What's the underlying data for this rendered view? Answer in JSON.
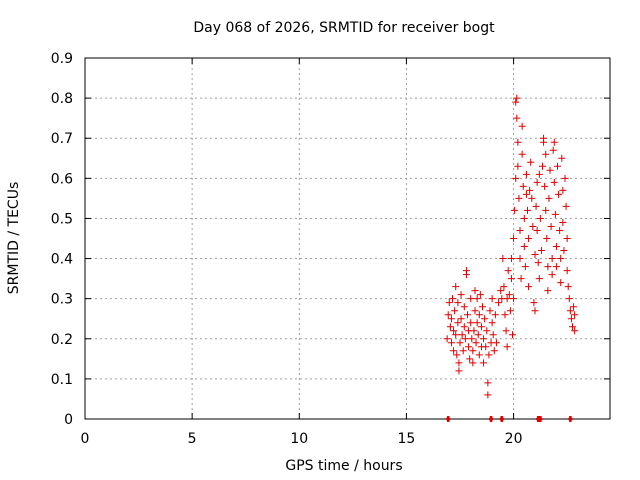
{
  "chart_data": {
    "type": "scatter",
    "title": "Day 068 of 2026, SRMTID for receiver bogt",
    "xlabel": "GPS time / hours",
    "ylabel": "SRMTID / TECUs",
    "xlim": [
      0,
      24.5
    ],
    "ylim": [
      0,
      0.9
    ],
    "x_ticks": [
      0,
      5,
      10,
      15,
      20
    ],
    "y_ticks": [
      0,
      0.1,
      0.2,
      0.3,
      0.4,
      0.5,
      0.6,
      0.7,
      0.8,
      0.9
    ],
    "x_tick_labels": [
      "0",
      "5",
      "10",
      "15",
      "20"
    ],
    "y_tick_labels": [
      "0",
      "0.1",
      "0.2",
      "0.3",
      "0.4",
      "0.5",
      "0.6",
      "0.7",
      "0.8",
      "0.9"
    ],
    "grid": true,
    "marker": "+",
    "marker_color": "#e00000",
    "series": [
      {
        "name": "SRMTID",
        "color": "#e00000",
        "points": [
          [
            16.9,
            0.2
          ],
          [
            16.95,
            0.26
          ],
          [
            17.0,
            0.29
          ],
          [
            17.05,
            0.23
          ],
          [
            17.1,
            0.19
          ],
          [
            17.1,
            0.25
          ],
          [
            17.15,
            0.3
          ],
          [
            17.2,
            0.22
          ],
          [
            17.2,
            0.17
          ],
          [
            17.25,
            0.27
          ],
          [
            17.3,
            0.33
          ],
          [
            17.3,
            0.21
          ],
          [
            17.35,
            0.16
          ],
          [
            17.4,
            0.24
          ],
          [
            17.4,
            0.29
          ],
          [
            17.45,
            0.14
          ],
          [
            17.45,
            0.12
          ],
          [
            17.5,
            0.19
          ],
          [
            17.55,
            0.25
          ],
          [
            17.55,
            0.31
          ],
          [
            17.6,
            0.21
          ],
          [
            17.65,
            0.17
          ],
          [
            17.7,
            0.23
          ],
          [
            17.7,
            0.28
          ],
          [
            17.75,
            0.2
          ],
          [
            17.8,
            0.36
          ],
          [
            17.8,
            0.37
          ],
          [
            17.85,
            0.26
          ],
          [
            17.9,
            0.22
          ],
          [
            17.9,
            0.18
          ],
          [
            17.95,
            0.15
          ],
          [
            18.0,
            0.24
          ],
          [
            18.0,
            0.3
          ],
          [
            18.05,
            0.2
          ],
          [
            18.1,
            0.17
          ],
          [
            18.1,
            0.14
          ],
          [
            18.15,
            0.22
          ],
          [
            18.2,
            0.27
          ],
          [
            18.2,
            0.32
          ],
          [
            18.25,
            0.19
          ],
          [
            18.3,
            0.24
          ],
          [
            18.3,
            0.3
          ],
          [
            18.35,
            0.21
          ],
          [
            18.4,
            0.16
          ],
          [
            18.4,
            0.26
          ],
          [
            18.45,
            0.31
          ],
          [
            18.5,
            0.23
          ],
          [
            18.5,
            0.18
          ],
          [
            18.55,
            0.28
          ],
          [
            18.6,
            0.2
          ],
          [
            18.6,
            0.14
          ],
          [
            18.65,
            0.25
          ],
          [
            18.7,
            0.18
          ],
          [
            18.75,
            0.22
          ],
          [
            18.8,
            0.09
          ],
          [
            18.8,
            0.06
          ],
          [
            18.85,
            0.16
          ],
          [
            18.9,
            0.27
          ],
          [
            18.95,
            0.19
          ],
          [
            19.0,
            0.24
          ],
          [
            19.0,
            0.3
          ],
          [
            19.05,
            0.21
          ],
          [
            19.1,
            0.17
          ],
          [
            19.15,
            0.26
          ],
          [
            19.2,
            0.19
          ],
          [
            19.3,
            0.29
          ],
          [
            19.4,
            0.32
          ],
          [
            19.45,
            0.3
          ],
          [
            19.5,
            0.4
          ],
          [
            19.55,
            0.33
          ],
          [
            19.6,
            0.26
          ],
          [
            19.65,
            0.22
          ],
          [
            19.7,
            0.3
          ],
          [
            19.7,
            0.18
          ],
          [
            19.75,
            0.37
          ],
          [
            19.8,
            0.31
          ],
          [
            19.85,
            0.27
          ],
          [
            19.9,
            0.35
          ],
          [
            19.9,
            0.4
          ],
          [
            19.95,
            0.21
          ],
          [
            20.0,
            0.3
          ],
          [
            20.0,
            0.45
          ],
          [
            20.05,
            0.52
          ],
          [
            20.1,
            0.6
          ],
          [
            20.1,
            0.79
          ],
          [
            20.15,
            0.8
          ],
          [
            20.15,
            0.75
          ],
          [
            20.2,
            0.69
          ],
          [
            20.2,
            0.63
          ],
          [
            20.25,
            0.55
          ],
          [
            20.3,
            0.47
          ],
          [
            20.3,
            0.4
          ],
          [
            20.35,
            0.35
          ],
          [
            20.4,
            0.73
          ],
          [
            20.4,
            0.66
          ],
          [
            20.45,
            0.58
          ],
          [
            20.5,
            0.5
          ],
          [
            20.5,
            0.43
          ],
          [
            20.55,
            0.38
          ],
          [
            20.6,
            0.56
          ],
          [
            20.6,
            0.61
          ],
          [
            20.65,
            0.52
          ],
          [
            20.7,
            0.45
          ],
          [
            20.7,
            0.33
          ],
          [
            20.75,
            0.57
          ],
          [
            20.8,
            0.64
          ],
          [
            20.85,
            0.55
          ],
          [
            20.9,
            0.48
          ],
          [
            20.95,
            0.29
          ],
          [
            21.0,
            0.27
          ],
          [
            21.0,
            0.41
          ],
          [
            21.05,
            0.53
          ],
          [
            21.1,
            0.59
          ],
          [
            21.1,
            0.47
          ],
          [
            21.15,
            0.39
          ],
          [
            21.2,
            0.35
          ],
          [
            21.2,
            0.61
          ],
          [
            21.25,
            0.5
          ],
          [
            21.3,
            0.42
          ],
          [
            21.35,
            0.63
          ],
          [
            21.4,
            0.69
          ],
          [
            21.4,
            0.7
          ],
          [
            21.45,
            0.58
          ],
          [
            21.5,
            0.66
          ],
          [
            21.5,
            0.52
          ],
          [
            21.55,
            0.45
          ],
          [
            21.6,
            0.38
          ],
          [
            21.6,
            0.32
          ],
          [
            21.65,
            0.55
          ],
          [
            21.7,
            0.62
          ],
          [
            21.75,
            0.48
          ],
          [
            21.8,
            0.4
          ],
          [
            21.8,
            0.36
          ],
          [
            21.85,
            0.67
          ],
          [
            21.9,
            0.69
          ],
          [
            21.9,
            0.59
          ],
          [
            21.95,
            0.51
          ],
          [
            22.0,
            0.43
          ],
          [
            22.0,
            0.38
          ],
          [
            22.05,
            0.63
          ],
          [
            22.1,
            0.56
          ],
          [
            22.15,
            0.47
          ],
          [
            22.2,
            0.4
          ],
          [
            22.2,
            0.34
          ],
          [
            22.25,
            0.65
          ],
          [
            22.3,
            0.57
          ],
          [
            22.3,
            0.49
          ],
          [
            22.35,
            0.42
          ],
          [
            22.4,
            0.6
          ],
          [
            22.45,
            0.53
          ],
          [
            22.5,
            0.45
          ],
          [
            22.5,
            0.37
          ],
          [
            22.55,
            0.33
          ],
          [
            22.6,
            0.3
          ],
          [
            22.65,
            0.27
          ],
          [
            22.7,
            0.25
          ],
          [
            22.75,
            0.23
          ],
          [
            22.8,
            0.28
          ],
          [
            22.85,
            0.26
          ],
          [
            22.85,
            0.22
          ]
        ]
      }
    ],
    "zero_markers_x": [
      16.95,
      18.95,
      19.45,
      21.15,
      21.25,
      22.65
    ]
  }
}
